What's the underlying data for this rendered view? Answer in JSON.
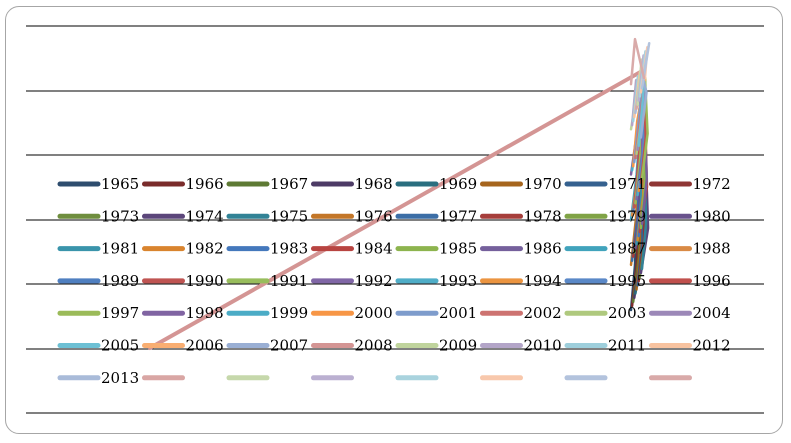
{
  "chart_data": {
    "type": "line",
    "title": "",
    "xlabel": "",
    "ylabel": "",
    "grid": true,
    "legend_position": "center",
    "legend_columns": 8,
    "series": [
      {
        "name": "1965",
        "color": "#2e4d6e"
      },
      {
        "name": "1966",
        "color": "#7a2c2b"
      },
      {
        "name": "1967",
        "color": "#5e7a34"
      },
      {
        "name": "1968",
        "color": "#4d3b66"
      },
      {
        "name": "1969",
        "color": "#2a6e7f"
      },
      {
        "name": "1970",
        "color": "#a6651d"
      },
      {
        "name": "1971",
        "color": "#35618f"
      },
      {
        "name": "1972",
        "color": "#8f3634"
      },
      {
        "name": "1973",
        "color": "#6f8e3e"
      },
      {
        "name": "1974",
        "color": "#5b467a"
      },
      {
        "name": "1975",
        "color": "#328396"
      },
      {
        "name": "1976",
        "color": "#c37628"
      },
      {
        "name": "1977",
        "color": "#3c6ea6"
      },
      {
        "name": "1978",
        "color": "#a63e3b"
      },
      {
        "name": "1979",
        "color": "#80a346"
      },
      {
        "name": "1980",
        "color": "#69528c"
      },
      {
        "name": "1981",
        "color": "#3a94ab"
      },
      {
        "name": "1982",
        "color": "#d9842e"
      },
      {
        "name": "1983",
        "color": "#4478bc"
      },
      {
        "name": "1984",
        "color": "#b84441"
      },
      {
        "name": "1985",
        "color": "#8db44e"
      },
      {
        "name": "1986",
        "color": "#75609c"
      },
      {
        "name": "1987",
        "color": "#41a3bc"
      },
      {
        "name": "1988",
        "color": "#d98a45"
      },
      {
        "name": "1989",
        "color": "#4f7fc0"
      },
      {
        "name": "1990",
        "color": "#bf5452"
      },
      {
        "name": "1991",
        "color": "#98bd5c"
      },
      {
        "name": "1992",
        "color": "#8066a6"
      },
      {
        "name": "1993",
        "color": "#4fadc7"
      },
      {
        "name": "1994",
        "color": "#eb9440"
      },
      {
        "name": "1995",
        "color": "#5a88c7"
      },
      {
        "name": "1996",
        "color": "#c0504d"
      },
      {
        "name": "1997",
        "color": "#9bbb59"
      },
      {
        "name": "1998",
        "color": "#8064a2"
      },
      {
        "name": "1999",
        "color": "#4bacc6"
      },
      {
        "name": "2000",
        "color": "#f79646"
      },
      {
        "name": "2001",
        "color": "#7e9ccc"
      },
      {
        "name": "2002",
        "color": "#cd7371"
      },
      {
        "name": "2003",
        "color": "#afc97e"
      },
      {
        "name": "2004",
        "color": "#9c88b8"
      },
      {
        "name": "2005",
        "color": "#6dc0d4"
      },
      {
        "name": "2006",
        "color": "#f9ae72"
      },
      {
        "name": "2007",
        "color": "#9aafd4"
      },
      {
        "name": "2008",
        "color": "#d49594"
      },
      {
        "name": "2009",
        "color": "#c0d49d"
      },
      {
        "name": "2010",
        "color": "#b3a5c8"
      },
      {
        "name": "2011",
        "color": "#9ecfdc"
      },
      {
        "name": "2012",
        "color": "#f8c3a0"
      },
      {
        "name": "2013",
        "color": "#a9bbd9"
      },
      {
        "name": "",
        "color": "#d9a6a4"
      },
      {
        "name": "",
        "color": "#c6d8ab"
      },
      {
        "name": "",
        "color": "#bbb0d1"
      },
      {
        "name": "",
        "color": "#a9d3de"
      },
      {
        "name": "",
        "color": "#f8c8ac"
      },
      {
        "name": "",
        "color": "#b3c3dd"
      },
      {
        "name": "",
        "color": "#d9aaa9"
      }
    ]
  }
}
